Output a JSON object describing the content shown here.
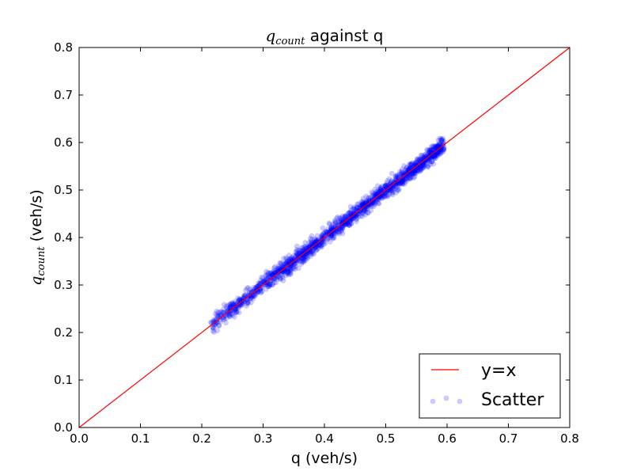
{
  "chart_data": {
    "type": "scatter",
    "title": {
      "math_base": "q",
      "math_sub": "count",
      "rest": " against q"
    },
    "xlabel": "q (veh/s)",
    "ylabel": {
      "math_base": "q",
      "math_sub": "count",
      "rest": " (veh/s)"
    },
    "xlim": [
      0.0,
      0.8
    ],
    "ylim": [
      0.0,
      0.8
    ],
    "xticks": [
      "0.0",
      "0.1",
      "0.2",
      "0.3",
      "0.4",
      "0.5",
      "0.6",
      "0.7",
      "0.8"
    ],
    "yticks": [
      "0.0",
      "0.1",
      "0.2",
      "0.3",
      "0.4",
      "0.5",
      "0.6",
      "0.7",
      "0.8"
    ],
    "grid": false,
    "legend_position": "lower-right",
    "series": [
      {
        "name": "y=x",
        "kind": "line",
        "color": "#ff0000",
        "x": [
          0.0,
          0.8
        ],
        "y": [
          0.0,
          0.8
        ]
      },
      {
        "name": "Scatter",
        "kind": "scatter",
        "color": "#0000ff",
        "alpha": 0.2,
        "x": [
          0.215,
          0.222,
          0.228,
          0.235,
          0.242,
          0.248,
          0.255,
          0.262,
          0.268,
          0.275,
          0.282,
          0.288,
          0.295,
          0.302,
          0.308,
          0.315,
          0.322,
          0.328,
          0.335,
          0.342,
          0.348,
          0.355,
          0.362,
          0.368,
          0.375,
          0.382,
          0.388,
          0.395,
          0.402,
          0.408,
          0.415,
          0.422,
          0.428,
          0.435,
          0.442,
          0.448,
          0.455,
          0.462,
          0.468,
          0.475,
          0.482,
          0.488,
          0.495,
          0.502,
          0.508,
          0.515,
          0.522,
          0.528,
          0.535,
          0.542,
          0.548,
          0.555,
          0.562,
          0.568,
          0.575,
          0.582,
          0.588,
          0.595,
          0.225,
          0.238,
          0.252,
          0.265,
          0.278,
          0.292,
          0.305,
          0.318,
          0.332,
          0.345,
          0.358,
          0.372,
          0.385,
          0.398,
          0.412,
          0.425,
          0.438,
          0.452,
          0.465,
          0.478,
          0.492,
          0.505,
          0.518,
          0.532,
          0.545,
          0.558,
          0.572,
          0.585,
          0.26,
          0.3,
          0.34,
          0.38,
          0.42,
          0.46,
          0.5,
          0.54,
          0.58,
          0.245,
          0.285,
          0.325,
          0.365,
          0.405,
          0.445,
          0.485,
          0.525,
          0.565
        ],
        "y": [
          0.222,
          0.218,
          0.232,
          0.228,
          0.245,
          0.252,
          0.25,
          0.268,
          0.265,
          0.272,
          0.286,
          0.294,
          0.29,
          0.305,
          0.312,
          0.31,
          0.326,
          0.332,
          0.33,
          0.345,
          0.353,
          0.35,
          0.365,
          0.372,
          0.37,
          0.384,
          0.394,
          0.39,
          0.405,
          0.412,
          0.41,
          0.426,
          0.432,
          0.43,
          0.446,
          0.452,
          0.45,
          0.466,
          0.472,
          0.47,
          0.485,
          0.492,
          0.49,
          0.505,
          0.512,
          0.51,
          0.526,
          0.532,
          0.53,
          0.545,
          0.552,
          0.55,
          0.565,
          0.575,
          0.57,
          0.585,
          0.582,
          0.59,
          0.236,
          0.24,
          0.258,
          0.262,
          0.284,
          0.286,
          0.31,
          0.305,
          0.338,
          0.34,
          0.352,
          0.366,
          0.39,
          0.391,
          0.418,
          0.42,
          0.433,
          0.456,
          0.47,
          0.474,
          0.498,
          0.5,
          0.525,
          0.524,
          0.548,
          0.55,
          0.58,
          0.575,
          0.252,
          0.306,
          0.334,
          0.386,
          0.414,
          0.466,
          0.494,
          0.546,
          0.588,
          0.25,
          0.28,
          0.33,
          0.36,
          0.41,
          0.44,
          0.49,
          0.52,
          0.575
        ]
      }
    ]
  }
}
